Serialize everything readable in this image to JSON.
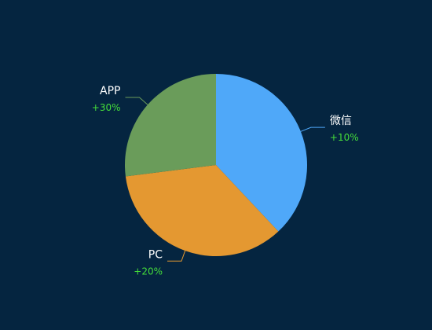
{
  "chart_data": {
    "type": "pie",
    "slices": [
      {
        "name": "微信",
        "value": 38,
        "change": "+10%",
        "color": "#4fa8f9"
      },
      {
        "name": "PC",
        "value": 35,
        "change": "+20%",
        "color": "#e49831"
      },
      {
        "name": "APP",
        "value": 27,
        "change": "+30%",
        "color": "#6a9c5a"
      }
    ],
    "label_change_color": "#45dd3a",
    "leader_line_color": "#9fb4c7"
  }
}
